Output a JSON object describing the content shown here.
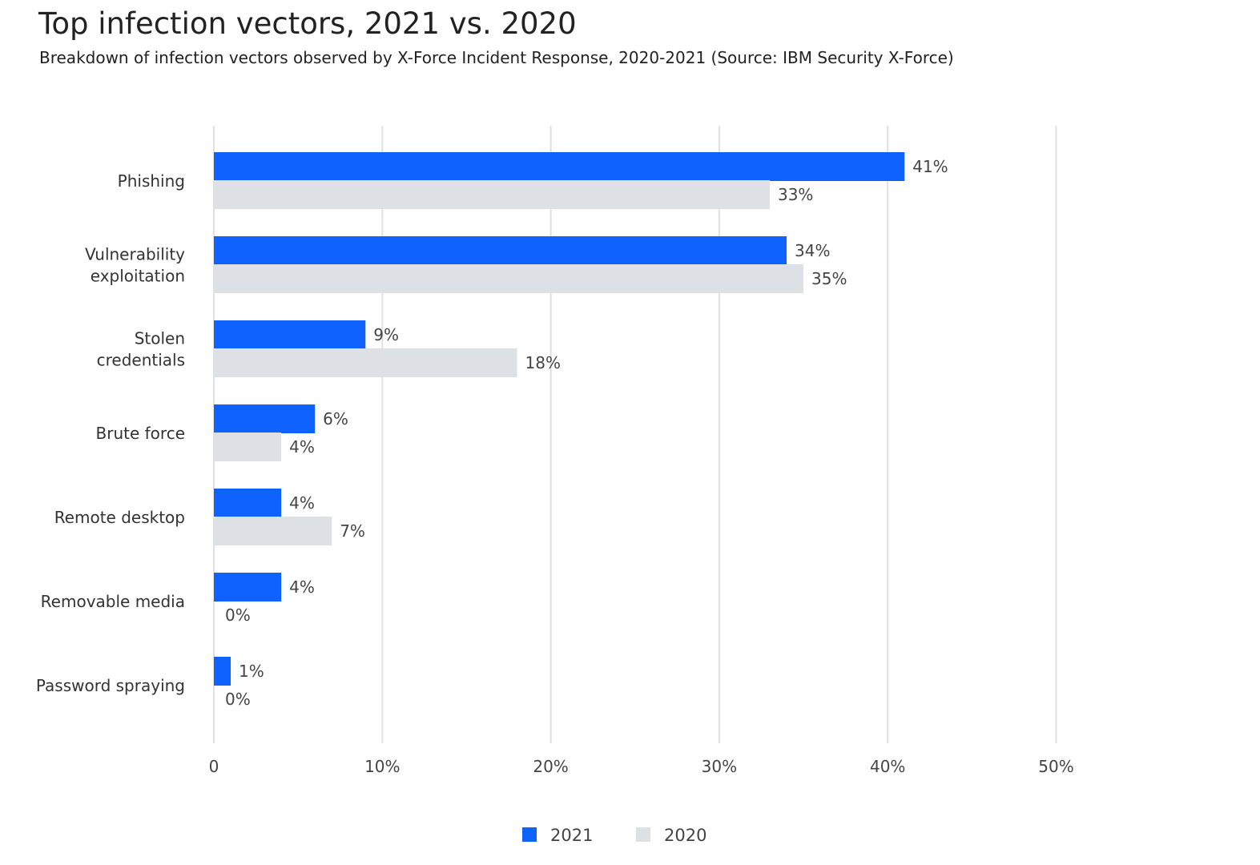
{
  "chart_data": {
    "type": "bar",
    "orientation": "horizontal",
    "title": "Top infection vectors, 2021 vs. 2020",
    "subtitle": "Breakdown of infection vectors observed by X-Force Incident Response, 2020-2021 (Source: IBM Security X-Force)",
    "categories": [
      [
        "Phishing"
      ],
      [
        "Vulnerability",
        "exploitation"
      ],
      [
        "Stolen",
        "credentials"
      ],
      [
        "Brute force"
      ],
      [
        "Remote desktop"
      ],
      [
        "Removable media"
      ],
      [
        "Password spraying"
      ]
    ],
    "series": [
      {
        "name": "2021",
        "color": "#0f62fe",
        "values": [
          41,
          34,
          9,
          6,
          4,
          4,
          1
        ],
        "labels": [
          "41%",
          "34%",
          "9%",
          "6%",
          "4%",
          "4%",
          "1%"
        ]
      },
      {
        "name": "2020",
        "color": "#dde1e6",
        "values": [
          33,
          35,
          18,
          4,
          7,
          0,
          0
        ],
        "labels": [
          "33%",
          "35%",
          "18%",
          "4%",
          "7%",
          "0%",
          "0%"
        ]
      }
    ],
    "xlim": [
      0,
      50
    ],
    "xticks": [
      0,
      10,
      20,
      30,
      40,
      50
    ],
    "xtick_labels": [
      "0",
      "10%",
      "20%",
      "30%",
      "40%",
      "50%"
    ],
    "grid": true,
    "legend_position": "bottom-center"
  }
}
